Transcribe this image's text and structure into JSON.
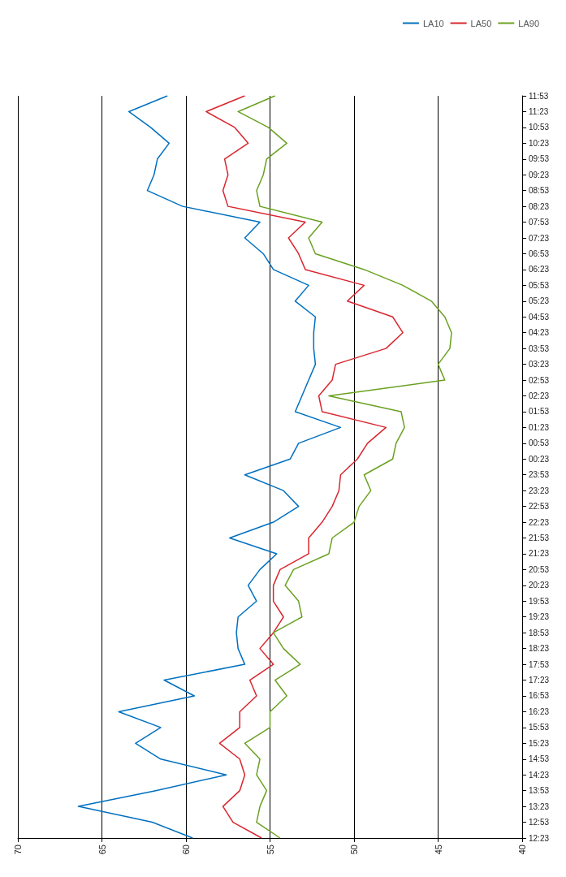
{
  "chart_data": {
    "type": "line",
    "categories": [
      "11:53",
      "11:23",
      "10:53",
      "10:23",
      "09:53",
      "09:23",
      "08:53",
      "08:23",
      "07:53",
      "07:23",
      "06:53",
      "06:23",
      "05:53",
      "05:23",
      "04:53",
      "04:23",
      "03:53",
      "03:23",
      "02:53",
      "02:23",
      "01:53",
      "01:23",
      "00:53",
      "00:23",
      "23:53",
      "23:23",
      "22:53",
      "22:23",
      "21:53",
      "21:23",
      "20:53",
      "20:23",
      "19:53",
      "19:23",
      "18:53",
      "18:23",
      "17:53",
      "17:23",
      "16:53",
      "16:23",
      "15:53",
      "15:23",
      "14:53",
      "14:23",
      "13:53",
      "13:23",
      "12:53",
      "12:23"
    ],
    "series": [
      {
        "name": "LA10",
        "color": "#0070c0",
        "values": [
          61.1,
          63.4,
          62.1,
          61.0,
          61.7,
          61.9,
          62.3,
          60.2,
          55.6,
          56.5,
          55.4,
          54.8,
          52.7,
          53.5,
          52.3,
          52.4,
          52.4,
          52.3,
          52.7,
          53.1,
          53.5,
          50.8,
          53.3,
          53.8,
          56.5,
          54.2,
          53.3,
          54.8,
          57.4,
          54.6,
          55.6,
          56.3,
          55.8,
          56.9,
          57.0,
          56.9,
          56.5,
          61.3,
          59.5,
          64.0,
          61.5,
          63.0,
          61.5,
          57.6,
          61.8,
          66.4,
          62.0,
          59.6
        ]
      },
      {
        "name": "LA50",
        "color": "#d9262e",
        "values": [
          56.5,
          58.8,
          57.1,
          56.3,
          57.7,
          57.5,
          57.8,
          57.5,
          52.9,
          53.9,
          53.3,
          52.9,
          49.4,
          50.4,
          47.7,
          47.1,
          48.1,
          51.1,
          51.3,
          52.1,
          51.9,
          48.1,
          49.2,
          49.8,
          50.8,
          50.9,
          51.3,
          51.9,
          52.7,
          52.7,
          54.4,
          54.8,
          54.8,
          54.2,
          54.8,
          55.6,
          54.8,
          56.2,
          55.8,
          56.8,
          56.8,
          58.0,
          56.8,
          56.5,
          56.8,
          57.8,
          57.2,
          55.5
        ]
      },
      {
        "name": "LA90",
        "color": "#6aa121",
        "values": [
          54.7,
          56.9,
          55.1,
          54.0,
          55.2,
          55.4,
          55.8,
          55.6,
          51.9,
          52.7,
          52.3,
          49.4,
          47.1,
          45.4,
          44.6,
          44.2,
          44.3,
          45.0,
          44.6,
          51.5,
          47.2,
          47.0,
          47.5,
          47.7,
          49.4,
          49.0,
          49.7,
          50.0,
          51.3,
          51.5,
          53.6,
          54.1,
          53.3,
          53.1,
          54.8,
          54.2,
          53.2,
          54.7,
          54.0,
          55.0,
          55.0,
          56.5,
          55.6,
          55.8,
          55.2,
          55.6,
          55.8,
          54.4
        ]
      }
    ],
    "xlim": [
      70,
      40
    ],
    "xticks": [
      70,
      65,
      60,
      55,
      50,
      45,
      40
    ],
    "orientation": "horizontal",
    "grid": "x",
    "legend": "top right",
    "marker": "none",
    "line_style": "solid"
  }
}
